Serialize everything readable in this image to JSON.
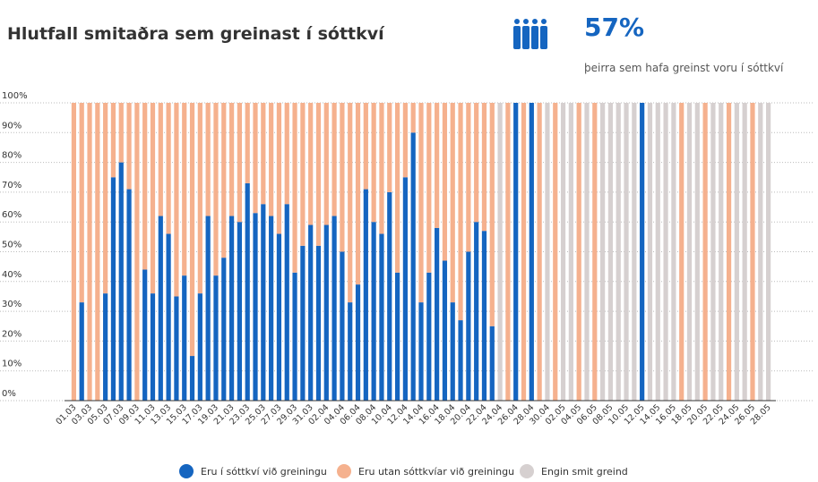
{
  "chart_data": {
    "type": "stacked-bar",
    "title": "Hlutfall smitaðra sem greinast í sóttkví",
    "summary_value": "57%",
    "summary_text": "þeirra sem hafa greinst voru í sóttkví",
    "categories": [
      "01.03",
      null,
      "03.03",
      null,
      "05.03",
      null,
      "07.03",
      null,
      "09.03",
      null,
      "11.03",
      null,
      "13.03",
      null,
      "15.03",
      null,
      "17.03",
      null,
      "19.03",
      null,
      "21.03",
      null,
      "23.03",
      null,
      "25.03",
      null,
      "27.03",
      null,
      "29.03",
      null,
      "31.03",
      null,
      "02.04",
      null,
      "04.04",
      null,
      "06.04",
      null,
      "08.04",
      null,
      "10.04",
      null,
      "12.04",
      null,
      "14.04",
      null,
      "16.04",
      null,
      "18.04",
      null,
      "20.04",
      null,
      "22.04",
      null,
      "24.04",
      null,
      "26.04",
      null,
      "28.04",
      null,
      "30.04",
      null,
      "02.05",
      null,
      "04.05",
      null,
      "06.05",
      null,
      "08.05",
      null,
      "10.05",
      null,
      "12.05",
      null,
      "14.05",
      null,
      "16.05",
      null,
      "18.05",
      null,
      "20.05",
      null,
      "22.05",
      null,
      "24.05",
      null,
      "26.05",
      null,
      "28.05"
    ],
    "series": [
      {
        "name": "Eru í sóttkví við greiningu",
        "color": "#1565c0",
        "values": [
          0,
          33,
          0,
          0,
          36,
          75,
          80,
          71,
          0,
          44,
          36,
          62,
          56,
          35,
          42,
          15,
          36,
          62,
          42,
          48,
          62,
          60,
          73,
          63,
          66,
          62,
          56,
          66,
          43,
          52,
          59,
          52,
          59,
          62,
          50,
          33,
          39,
          71,
          60,
          56,
          70,
          43,
          75,
          90,
          33,
          43,
          58,
          47,
          33,
          27,
          50,
          60,
          57,
          25,
          0,
          0,
          100,
          0,
          100,
          0,
          0,
          0,
          0,
          0,
          0,
          0,
          0,
          0,
          0,
          0,
          0,
          0,
          100,
          0,
          0,
          0,
          0,
          0,
          0,
          0,
          0,
          0,
          0,
          0,
          0,
          0,
          0,
          0,
          0
        ]
      },
      {
        "name": "Eru utan sóttkvíar við greiningu",
        "color": "#f5b18e",
        "values": [
          100,
          67,
          100,
          100,
          64,
          25,
          20,
          29,
          100,
          56,
          64,
          38,
          44,
          65,
          58,
          85,
          64,
          38,
          58,
          52,
          38,
          40,
          27,
          37,
          34,
          38,
          44,
          34,
          57,
          48,
          41,
          48,
          41,
          38,
          50,
          67,
          61,
          29,
          40,
          44,
          30,
          57,
          25,
          10,
          67,
          57,
          42,
          53,
          67,
          73,
          50,
          40,
          43,
          75,
          0,
          100,
          0,
          100,
          0,
          100,
          0,
          100,
          0,
          0,
          100,
          0,
          100,
          0,
          0,
          0,
          0,
          0,
          0,
          0,
          0,
          0,
          0,
          100,
          0,
          0,
          100,
          0,
          0,
          100,
          0,
          0,
          100,
          0,
          0
        ]
      },
      {
        "name": "Engin smit greind",
        "color": "#d6d0d0",
        "values": [
          0,
          0,
          0,
          0,
          0,
          0,
          0,
          0,
          0,
          0,
          0,
          0,
          0,
          0,
          0,
          0,
          0,
          0,
          0,
          0,
          0,
          0,
          0,
          0,
          0,
          0,
          0,
          0,
          0,
          0,
          0,
          0,
          0,
          0,
          0,
          0,
          0,
          0,
          0,
          0,
          0,
          0,
          0,
          0,
          0,
          0,
          0,
          0,
          0,
          0,
          0,
          0,
          0,
          0,
          100,
          0,
          0,
          0,
          0,
          0,
          100,
          0,
          100,
          100,
          0,
          100,
          0,
          100,
          100,
          100,
          100,
          100,
          0,
          100,
          100,
          100,
          100,
          0,
          100,
          100,
          0,
          100,
          100,
          0,
          100,
          100,
          0,
          100,
          100
        ]
      }
    ],
    "ylim": [
      0,
      100
    ],
    "yticks": [
      {
        "value": 0,
        "label": "0%"
      },
      {
        "value": 10,
        "label": "10%"
      },
      {
        "value": 20,
        "label": "20%"
      },
      {
        "value": 30,
        "label": "30%"
      },
      {
        "value": 40,
        "label": "40%"
      },
      {
        "value": 50,
        "label": "50%"
      },
      {
        "value": 60,
        "label": "60%"
      },
      {
        "value": 70,
        "label": "70%"
      },
      {
        "value": 80,
        "label": "80%"
      },
      {
        "value": 90,
        "label": "90%"
      },
      {
        "value": 100,
        "label": "100%"
      }
    ],
    "grid": true
  }
}
